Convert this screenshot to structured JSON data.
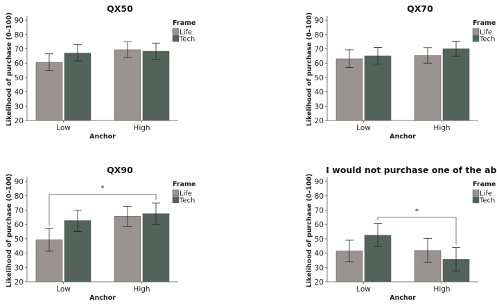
{
  "chart_data": [
    {
      "type": "bar",
      "title": "QX50",
      "xlabel": "Anchor",
      "ylabel": "Likelihood of purchase (0–100)",
      "ylim": [
        20,
        93
      ],
      "yticks": [
        20,
        30,
        40,
        50,
        60,
        70,
        80,
        90
      ],
      "categories": [
        "Low",
        "High"
      ],
      "legend_title": "Frame",
      "legend_position": "top-right",
      "grid": false,
      "series": [
        {
          "name": "Life",
          "color": "#9a9391",
          "values": [
            60.5,
            69.3
          ],
          "err_low": [
            55,
            64
          ],
          "err_high": [
            66.5,
            74.8
          ]
        },
        {
          "name": "Tech",
          "color": "#52635b",
          "values": [
            67,
            68.3
          ],
          "err_low": [
            61.5,
            62.7
          ],
          "err_high": [
            73,
            74
          ]
        }
      ],
      "significance": []
    },
    {
      "type": "bar",
      "title": "QX70",
      "xlabel": "Anchor",
      "ylabel": "Likelihood of purchase (0–100)",
      "ylim": [
        20,
        93
      ],
      "yticks": [
        20,
        30,
        40,
        50,
        60,
        70,
        80,
        90
      ],
      "categories": [
        "Low",
        "High"
      ],
      "legend_title": "Frame",
      "legend_position": "top-right",
      "grid": false,
      "series": [
        {
          "name": "Life",
          "color": "#9a9391",
          "values": [
            63,
            65.3
          ],
          "err_low": [
            57,
            60
          ],
          "err_high": [
            69.3,
            70.8
          ]
        },
        {
          "name": "Tech",
          "color": "#52635b",
          "values": [
            65,
            70
          ],
          "err_low": [
            59.3,
            64.8
          ],
          "err_high": [
            71,
            75.3
          ]
        }
      ],
      "significance": []
    },
    {
      "type": "bar",
      "title": "QX90",
      "xlabel": "Anchor",
      "ylabel": "Likelihood of purchase (0–100)",
      "ylim": [
        20,
        93
      ],
      "yticks": [
        20,
        30,
        40,
        50,
        60,
        70,
        80,
        90
      ],
      "categories": [
        "Low",
        "High"
      ],
      "legend_title": "Frame",
      "legend_position": "top-right",
      "grid": false,
      "series": [
        {
          "name": "Life",
          "color": "#9a9391",
          "values": [
            49.3,
            65.7
          ],
          "err_low": [
            41.3,
            58.5
          ],
          "err_high": [
            57,
            72.5
          ]
        },
        {
          "name": "Tech",
          "color": "#52635b",
          "values": [
            62.7,
            67.5
          ],
          "err_low": [
            55,
            60
          ],
          "err_high": [
            70,
            75
          ]
        }
      ],
      "significance": [
        {
          "from": {
            "category": "Low",
            "series": "Life"
          },
          "to": {
            "category": "High",
            "series": "Tech"
          },
          "level": 81,
          "label": "*"
        }
      ]
    },
    {
      "type": "bar",
      "title": "I would not purchase one of the above",
      "xlabel": "Anchor",
      "ylabel": "Likelihood of purchase (0–100)",
      "ylim": [
        20,
        93
      ],
      "yticks": [
        20,
        30,
        40,
        50,
        60,
        70,
        80,
        90
      ],
      "categories": [
        "Low",
        "High"
      ],
      "legend_title": "Frame",
      "legend_position": "top-right",
      "grid": false,
      "series": [
        {
          "name": "Life",
          "color": "#9a9391",
          "values": [
            41.5,
            41.8
          ],
          "err_low": [
            34,
            33.5
          ],
          "err_high": [
            49,
            50.3
          ]
        },
        {
          "name": "Tech",
          "color": "#52635b",
          "values": [
            52.5,
            35.7
          ],
          "err_low": [
            44.5,
            27.5
          ],
          "err_high": [
            60.8,
            44
          ]
        }
      ],
      "significance": [
        {
          "from": {
            "category": "Low",
            "series": "Tech"
          },
          "to": {
            "category": "High",
            "series": "Tech"
          },
          "level": 65,
          "label": "*"
        }
      ]
    }
  ]
}
